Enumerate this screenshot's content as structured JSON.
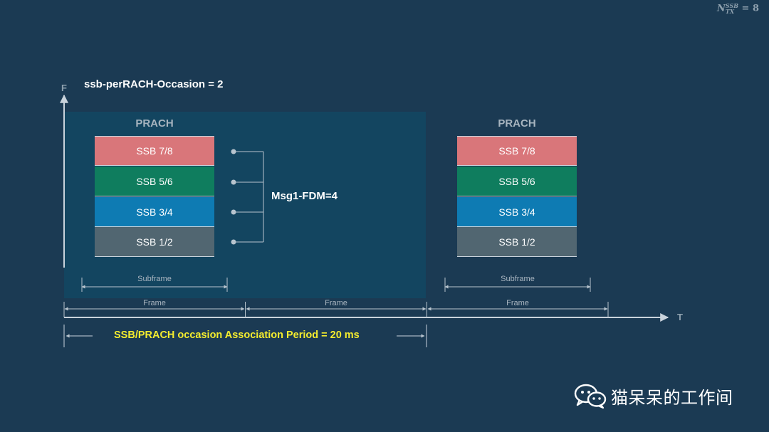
{
  "corner_formula": {
    "symbol": "N",
    "superscript": "SSB",
    "subscript": "TX",
    "value": "= 8"
  },
  "axes": {
    "vertical": "F",
    "horizontal": "T"
  },
  "ssb_per_rach": "ssb-perRACH-Occasion = 2",
  "msg1_fdm": "Msg1-FDM=4",
  "prach_groups": [
    {
      "title": "PRACH",
      "blocks": [
        {
          "label": "SSB 7/8",
          "color": "#d9767a"
        },
        {
          "label": "SSB 5/6",
          "color": "#0f7d5e"
        },
        {
          "label": "SSB 3/4",
          "color": "#0e7bb3"
        },
        {
          "label": "SSB 1/2",
          "color": "#516671"
        }
      ],
      "subframe_label": "Subframe"
    },
    {
      "title": "PRACH",
      "blocks": [
        {
          "label": "SSB 7/8",
          "color": "#d9767a"
        },
        {
          "label": "SSB 5/6",
          "color": "#0f7d5e"
        },
        {
          "label": "SSB 3/4",
          "color": "#0e7bb3"
        },
        {
          "label": "SSB 1/2",
          "color": "#516671"
        }
      ],
      "subframe_label": "Subframe"
    }
  ],
  "frame_labels": [
    "Frame",
    "Frame",
    "Frame"
  ],
  "association_period": "SSB/PRACH occasion Association Period = 20 ms",
  "watermark": "猫呆呆的工作间",
  "colors": {
    "background": "#1b3a53",
    "highlight": "#134560",
    "association_text": "#f4ec2e",
    "arrow": "#c9d3dc"
  }
}
